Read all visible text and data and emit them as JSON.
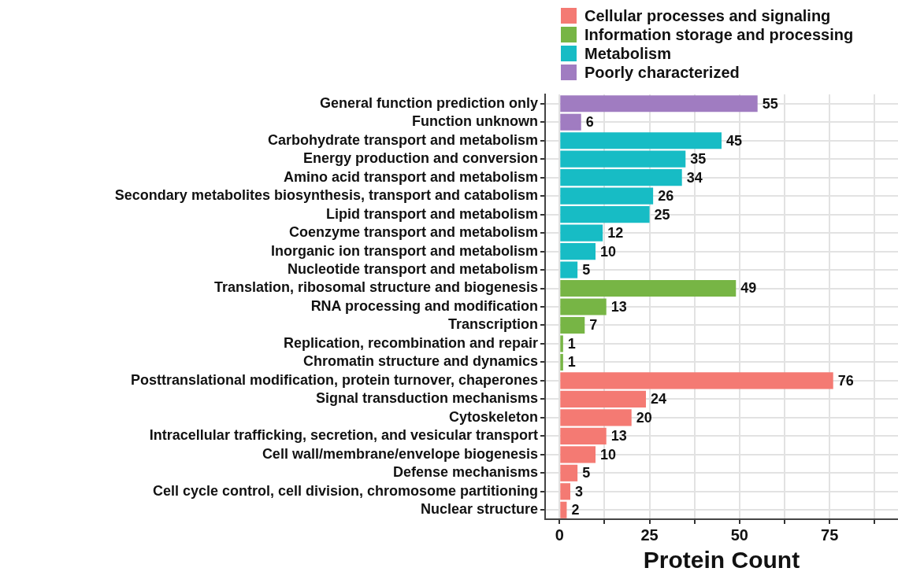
{
  "chart_data": {
    "type": "bar",
    "orientation": "horizontal",
    "xlabel": "Protein Count",
    "categories": [
      "General function prediction only",
      "Function unknown",
      "Carbohydrate transport and metabolism",
      "Energy production and conversion",
      "Amino acid transport and metabolism",
      "Secondary metabolites biosynthesis, transport and catabolism",
      "Lipid transport and metabolism",
      "Coenzyme transport and metabolism",
      "Inorganic ion transport and metabolism",
      "Nucleotide transport and metabolism",
      "Translation, ribosomal structure and biogenesis",
      "RNA processing and modification",
      "Transcription",
      "Replication, recombination and repair",
      "Chromatin structure and dynamics",
      "Posttranslational modification, protein turnover, chaperones",
      "Signal transduction mechanisms",
      "Cytoskeleton",
      "Intracellular trafficking, secretion, and vesicular transport",
      "Cell wall/membrane/envelope biogenesis",
      "Defense mechanisms",
      "Cell cycle control, cell division, chromosome partitioning",
      "Nuclear structure"
    ],
    "series": [
      {
        "name": "Cellular processes and signaling",
        "color": "#f47a73",
        "values": [
          null,
          null,
          null,
          null,
          null,
          null,
          null,
          null,
          null,
          null,
          null,
          null,
          null,
          null,
          null,
          76,
          24,
          20,
          13,
          10,
          5,
          3,
          2
        ]
      },
      {
        "name": "Information storage and processing",
        "color": "#77b545",
        "values": [
          null,
          null,
          null,
          null,
          null,
          null,
          null,
          null,
          null,
          null,
          49,
          13,
          7,
          1,
          1,
          null,
          null,
          null,
          null,
          null,
          null,
          null,
          null
        ]
      },
      {
        "name": "Metabolism",
        "color": "#17bcc5",
        "values": [
          null,
          null,
          45,
          35,
          34,
          26,
          25,
          12,
          10,
          5,
          null,
          null,
          null,
          null,
          null,
          null,
          null,
          null,
          null,
          null,
          null,
          null,
          null
        ]
      },
      {
        "name": "Poorly characterized",
        "color": "#a07cc1",
        "values": [
          55,
          6,
          null,
          null,
          null,
          null,
          null,
          null,
          null,
          null,
          null,
          null,
          null,
          null,
          null,
          null,
          null,
          null,
          null,
          null,
          null,
          null,
          null
        ]
      }
    ],
    "xlim": [
      -4,
      94
    ],
    "xticks": [
      0,
      {
        "value": 12.5,
        "label": null
      },
      25,
      {
        "value": 37.5,
        "label": null
      },
      50,
      {
        "value": 62.5,
        "label": null
      },
      75,
      {
        "value": 87.5,
        "label": null
      }
    ],
    "grid": true,
    "legend": "top",
    "data_labels": true
  }
}
